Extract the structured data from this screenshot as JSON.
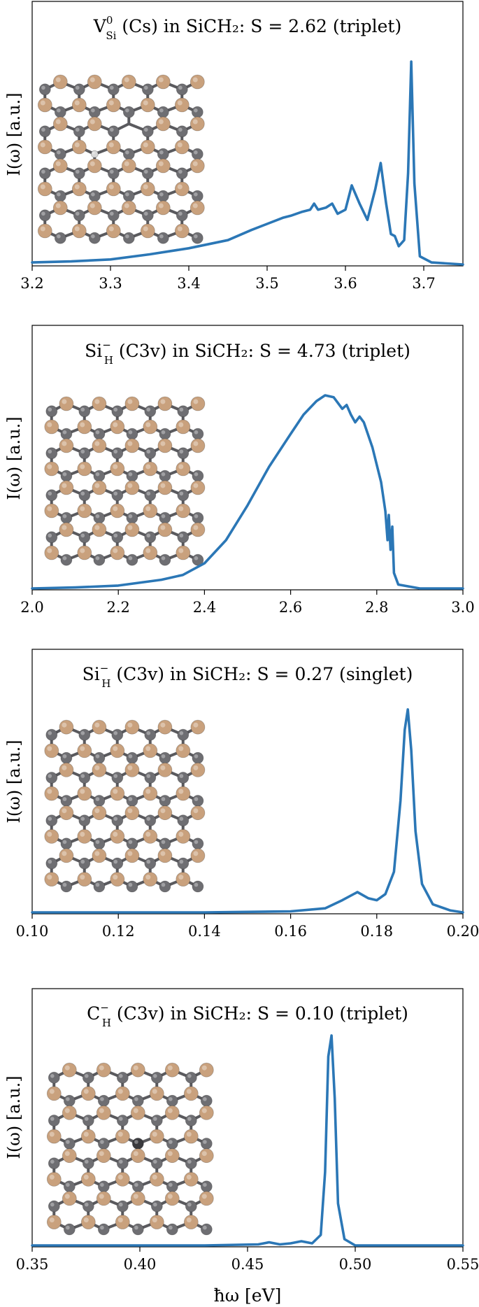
{
  "figure": {
    "xlabel": "ħω [eV]"
  },
  "colors": {
    "line": "#2b77b6",
    "silicon": "#c9a17d",
    "carbon": "#6e6e72",
    "hydrogen": "#d8d8d8"
  },
  "chart_data": [
    {
      "type": "line",
      "title": "V⁰Si (Cs) in SiCH₂: S = 2.62 (triplet)",
      "title_parts": {
        "main": "V",
        "sup": "0",
        "sub": "Si",
        "rest": " (Cs) in SiCH₂: S = 2.62 (triplet)"
      },
      "ylabel": "I(ω) [a.u.]",
      "xlim": [
        3.2,
        3.75
      ],
      "ylim": [
        0,
        1.0
      ],
      "xticks": [
        "3.2",
        "3.3",
        "3.4",
        "3.5",
        "3.6",
        "3.7"
      ],
      "xtick_values": [
        3.2,
        3.3,
        3.4,
        3.5,
        3.6,
        3.7
      ],
      "x": [
        3.2,
        3.25,
        3.3,
        3.35,
        3.4,
        3.45,
        3.48,
        3.5,
        3.52,
        3.53,
        3.545,
        3.555,
        3.56,
        3.565,
        3.575,
        3.583,
        3.59,
        3.6,
        3.608,
        3.618,
        3.628,
        3.638,
        3.645,
        3.652,
        3.658,
        3.663,
        3.668,
        3.675,
        3.68,
        3.684,
        3.688,
        3.695,
        3.71,
        3.75
      ],
      "values": [
        0.01,
        0.015,
        0.025,
        0.05,
        0.08,
        0.12,
        0.17,
        0.2,
        0.23,
        0.24,
        0.26,
        0.27,
        0.3,
        0.27,
        0.28,
        0.3,
        0.25,
        0.27,
        0.39,
        0.3,
        0.22,
        0.37,
        0.5,
        0.3,
        0.15,
        0.14,
        0.09,
        0.12,
        0.45,
        1.0,
        0.4,
        0.04,
        0.01,
        0.0
      ]
    },
    {
      "type": "line",
      "title": "Si⁻H (C3v) in SiCH₂: S = 4.73 (triplet)",
      "title_parts": {
        "main": "Si",
        "sup": "−",
        "sub": "H",
        "rest": " (C3v) in SiCH₂: S = 4.73 (triplet)"
      },
      "ylabel": "I(ω) [a.u.]",
      "xlim": [
        2.0,
        3.0
      ],
      "ylim": [
        0,
        1.0
      ],
      "xticks": [
        "2.0",
        "2.2",
        "2.4",
        "2.6",
        "2.8",
        "3.0"
      ],
      "xtick_values": [
        2.0,
        2.2,
        2.4,
        2.6,
        2.8,
        3.0
      ],
      "x": [
        2.0,
        2.1,
        2.2,
        2.3,
        2.35,
        2.4,
        2.45,
        2.5,
        2.55,
        2.6,
        2.63,
        2.66,
        2.68,
        2.7,
        2.72,
        2.73,
        2.74,
        2.75,
        2.76,
        2.77,
        2.79,
        2.81,
        2.82,
        2.825,
        2.828,
        2.832,
        2.836,
        2.84,
        2.85,
        2.9,
        3.0
      ],
      "values": [
        0.0,
        0.005,
        0.015,
        0.045,
        0.07,
        0.13,
        0.25,
        0.43,
        0.63,
        0.8,
        0.9,
        0.97,
        1.0,
        0.99,
        0.93,
        0.95,
        0.9,
        0.86,
        0.89,
        0.86,
        0.73,
        0.55,
        0.4,
        0.25,
        0.38,
        0.2,
        0.32,
        0.08,
        0.02,
        0.0,
        0.0
      ]
    },
    {
      "type": "line",
      "title": "Si⁻H (C3v) in SiCH₂: S = 0.27 (singlet)",
      "title_parts": {
        "main": "Si",
        "sup": "−",
        "sub": "H",
        "rest": " (C3v) in SiCH₂: S = 0.27 (singlet)"
      },
      "ylabel": "I(ω) [a.u.]",
      "xlim": [
        0.1,
        0.2
      ],
      "ylim": [
        0,
        1.0
      ],
      "xticks": [
        "0.10",
        "0.12",
        "0.14",
        "0.16",
        "0.18",
        "0.20"
      ],
      "xtick_values": [
        0.1,
        0.12,
        0.14,
        0.16,
        0.18,
        0.2
      ],
      "x": [
        0.1,
        0.14,
        0.16,
        0.168,
        0.172,
        0.1755,
        0.178,
        0.18,
        0.182,
        0.184,
        0.1855,
        0.1865,
        0.1872,
        0.188,
        0.189,
        0.1905,
        0.193,
        0.197,
        0.2
      ],
      "values": [
        0.0,
        0.0,
        0.005,
        0.02,
        0.06,
        0.1,
        0.07,
        0.06,
        0.09,
        0.2,
        0.55,
        0.9,
        1.0,
        0.8,
        0.4,
        0.14,
        0.04,
        0.01,
        0.0
      ]
    },
    {
      "type": "line",
      "title": "C⁻H (C3v) in SiCH₂: S = 0.10 (triplet)",
      "title_parts": {
        "main": "C",
        "sup": "−",
        "sub": "H",
        "rest": " (C3v) in SiCH₂: S = 0.10 (triplet)"
      },
      "ylabel": "I(ω) [a.u.]",
      "xlim": [
        0.35,
        0.55
      ],
      "ylim": [
        0,
        1.0
      ],
      "xticks": [
        "0.35",
        "0.40",
        "0.45",
        "0.50",
        "0.55"
      ],
      "xtick_values": [
        0.35,
        0.4,
        0.45,
        0.5,
        0.55
      ],
      "x": [
        0.35,
        0.43,
        0.455,
        0.46,
        0.465,
        0.47,
        0.475,
        0.48,
        0.484,
        0.486,
        0.4875,
        0.489,
        0.4905,
        0.492,
        0.495,
        0.5,
        0.55
      ],
      "values": [
        0.0,
        0.0,
        0.005,
        0.015,
        0.005,
        0.01,
        0.02,
        0.01,
        0.05,
        0.35,
        0.9,
        1.0,
        0.7,
        0.2,
        0.03,
        0.0,
        0.0
      ]
    }
  ]
}
